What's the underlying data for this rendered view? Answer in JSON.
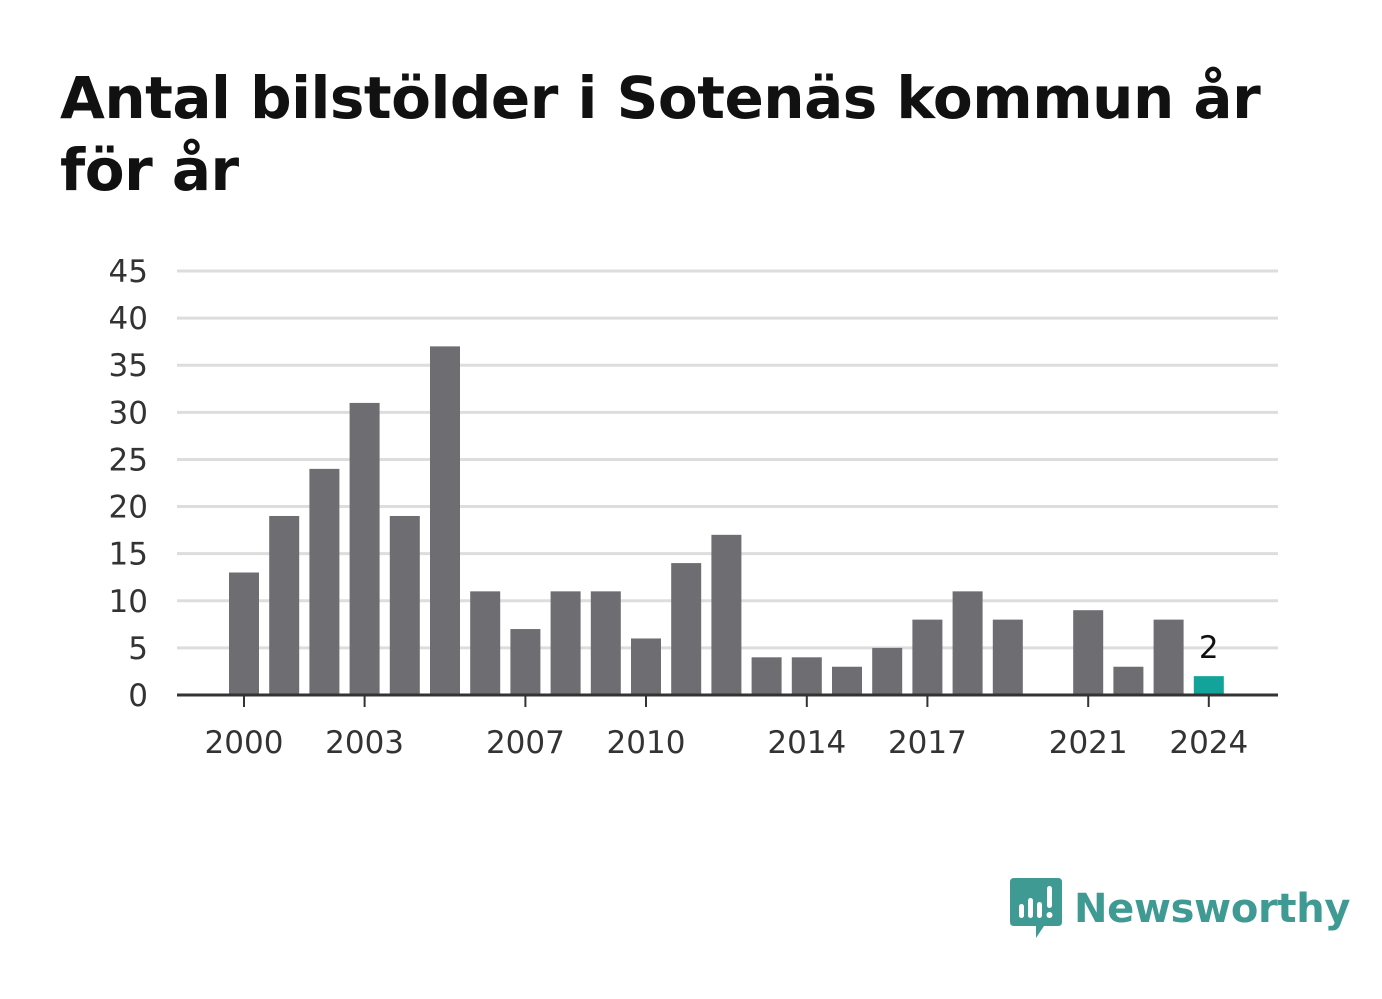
{
  "title": "Antal bilstölder i Sotenäs kommun år för år",
  "chart_data": {
    "type": "bar",
    "title": "Antal bilstölder i Sotenäs kommun år för år",
    "xlabel": "",
    "ylabel": "",
    "categories": [
      "2000",
      "2001",
      "2002",
      "2003",
      "2004",
      "2005",
      "2006",
      "2007",
      "2008",
      "2009",
      "2010",
      "2011",
      "2012",
      "2013",
      "2014",
      "2015",
      "2016",
      "2017",
      "2018",
      "2019",
      "2020",
      "2021",
      "2022",
      "2023",
      "2024"
    ],
    "values": [
      13,
      19,
      24,
      31,
      19,
      37,
      11,
      7,
      11,
      11,
      6,
      14,
      17,
      4,
      4,
      3,
      5,
      8,
      11,
      8,
      0,
      9,
      3,
      8,
      2
    ],
    "x_tick_labels": [
      "2000",
      "2003",
      "2007",
      "2010",
      "2014",
      "2017",
      "2021",
      "2024"
    ],
    "y_ticks": [
      0,
      5,
      10,
      15,
      20,
      25,
      30,
      35,
      40,
      45
    ],
    "ylim": [
      0,
      45
    ],
    "grid": true,
    "highlight": {
      "category": "2024",
      "label": "2"
    },
    "colors": {
      "bar": "#6e6d72",
      "highlight": "#12a39a",
      "grid": "#dddddd",
      "axis": "#333333"
    }
  },
  "brand": {
    "name": "Newsworthy",
    "icon": "newsworthy-logo-icon",
    "color": "#3f9a93"
  }
}
